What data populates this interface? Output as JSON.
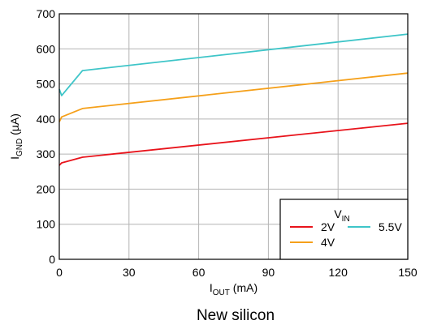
{
  "chart_data": {
    "type": "line",
    "x": [
      0,
      1,
      10,
      150
    ],
    "xlim": [
      0,
      150
    ],
    "ylim": [
      0,
      700
    ],
    "xticks": [
      "0",
      "30",
      "60",
      "90",
      "120",
      "150"
    ],
    "yticks": [
      "0",
      "100",
      "200",
      "300",
      "400",
      "500",
      "600",
      "700"
    ],
    "xlabel": {
      "main": "I",
      "sub": "OUT",
      "unit": " (mA)"
    },
    "ylabel": {
      "main": "I",
      "sub": "GND",
      "unit": " (µA)"
    },
    "legend": {
      "title_main": "V",
      "title_sub": "IN",
      "placement": "bottom-right"
    },
    "grid": true,
    "series": [
      {
        "name": "2V",
        "color": "#e8131b",
        "values": [
          268,
          275,
          291,
          388
        ]
      },
      {
        "name": "4V",
        "color": "#f5a01a",
        "values": [
          392,
          406,
          430,
          531
        ]
      },
      {
        "name": "5.5V",
        "color": "#3ec5c8",
        "values": [
          485,
          467,
          538,
          642
        ]
      }
    ],
    "caption": "New silicon"
  }
}
